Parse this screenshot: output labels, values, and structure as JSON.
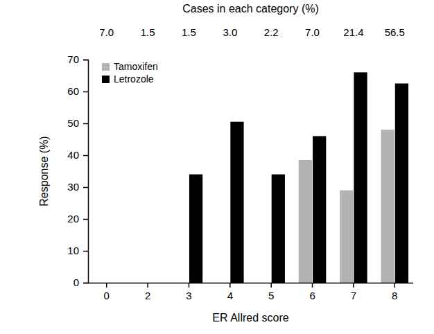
{
  "chart_data": {
    "type": "bar",
    "top_title": "Cases in each category (%)",
    "cases": [
      {
        "value": 7.0,
        "label": "7.0"
      },
      {
        "value": 1.5,
        "label": "1.5"
      },
      {
        "value": 1.5,
        "label": "1.5"
      },
      {
        "value": 3.0,
        "label": "3.0"
      },
      {
        "value": 2.2,
        "label": "2.2"
      },
      {
        "value": 7.0,
        "label": "7.0"
      },
      {
        "value": 21.4,
        "label": "21.4"
      },
      {
        "value": 56.5,
        "label": "56.5"
      }
    ],
    "x_label": "ER Allred score",
    "y_label": "Response (%)",
    "categories": [
      "0",
      "2",
      "3",
      "4",
      "5",
      "6",
      "7",
      "8"
    ],
    "series": [
      {
        "name": "Tamoxifen",
        "color": "#b3b3b3",
        "values": [
          0,
          0,
          0,
          0,
          0,
          38.5,
          29,
          48
        ]
      },
      {
        "name": "Letrozole",
        "color": "#000000",
        "values": [
          0,
          0,
          34,
          50.5,
          34,
          46,
          66,
          62.5
        ]
      }
    ],
    "ylim": [
      0,
      70
    ],
    "yticks": [
      0,
      10,
      20,
      30,
      40,
      50,
      60,
      70
    ],
    "legend": "top-left",
    "grid": false
  }
}
